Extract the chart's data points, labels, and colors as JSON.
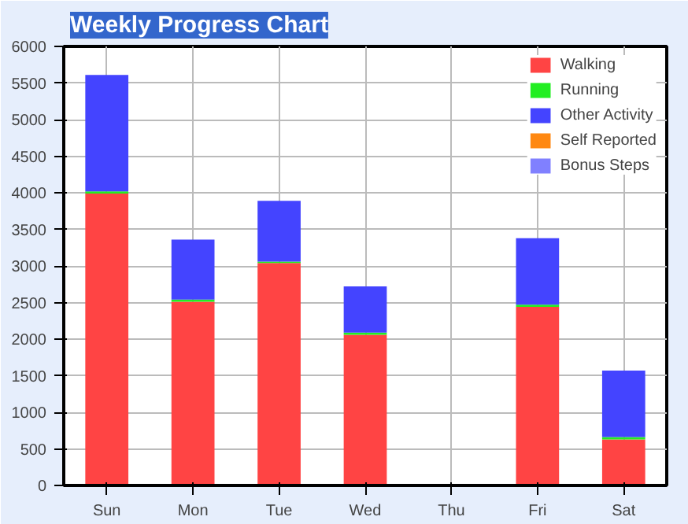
{
  "chart_data": {
    "type": "bar",
    "title": "Weekly Progress Chart",
    "stacked": true,
    "categories": [
      "Sun",
      "Mon",
      "Tue",
      "Wed",
      "Thu",
      "Fri",
      "Sat"
    ],
    "series": [
      {
        "name": "Walking",
        "color": "#ff4444",
        "values": [
          3990,
          2510,
          3040,
          2060,
          0,
          2440,
          630
        ]
      },
      {
        "name": "Running",
        "color": "#22ee22",
        "values": [
          30,
          30,
          20,
          30,
          0,
          30,
          30
        ]
      },
      {
        "name": "Other Activity",
        "color": "#4444ff",
        "values": [
          1590,
          820,
          830,
          630,
          0,
          910,
          910
        ]
      },
      {
        "name": "Self Reported",
        "color": "#ff8811",
        "values": [
          0,
          0,
          0,
          0,
          0,
          0,
          0
        ]
      },
      {
        "name": "Bonus Steps",
        "color": "#8080ff",
        "values": [
          0,
          0,
          0,
          0,
          0,
          0,
          0
        ]
      }
    ],
    "ylim": [
      0,
      6000
    ],
    "yticks": [
      0,
      500,
      1000,
      1500,
      2000,
      2500,
      3000,
      3500,
      4000,
      4500,
      5000,
      5500,
      6000
    ],
    "grid": true,
    "legend": "top right"
  }
}
